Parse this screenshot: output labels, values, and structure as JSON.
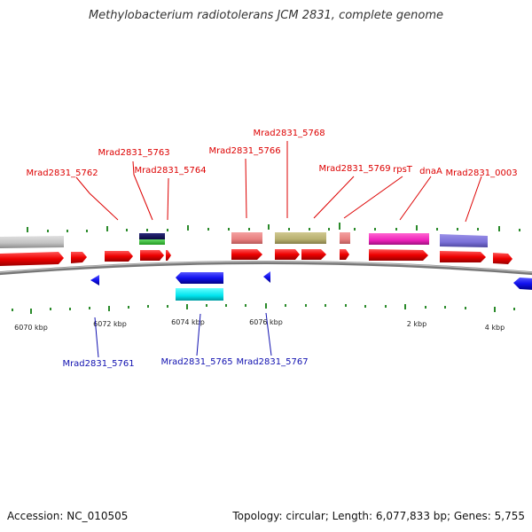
{
  "title": "Methylobacterium radiotolerans JCM 2831, complete genome",
  "footer": {
    "accession": "Accession: NC_010505",
    "topology": "Topology: circular; Length: 6,077,833 bp; Genes: 5,755"
  },
  "colors": {
    "top_label": "#dd0000",
    "bottom_label": "#1010b0",
    "tick": "#2a8a2a",
    "backbone": "#8c8c8c",
    "cds": "#ee1111",
    "cds_minus": "#1111ee"
  },
  "scale_labels": [
    "6070 kbp",
    "6072 kbp",
    "6074 kbp",
    "6076 kbp",
    "2 kbp",
    "4 kbp"
  ],
  "top_labels": [
    "Mrad2831_5762",
    "Mrad2831_5763",
    "Mrad2831_5764",
    "Mrad2831_5766",
    "Mrad2831_5768",
    "Mrad2831_5769",
    "rpsT",
    "dnaA",
    "Mrad2831_0003"
  ],
  "bottom_labels": [
    "Mrad2831_5761",
    "Mrad2831_5765",
    "Mrad2831_5767"
  ]
}
